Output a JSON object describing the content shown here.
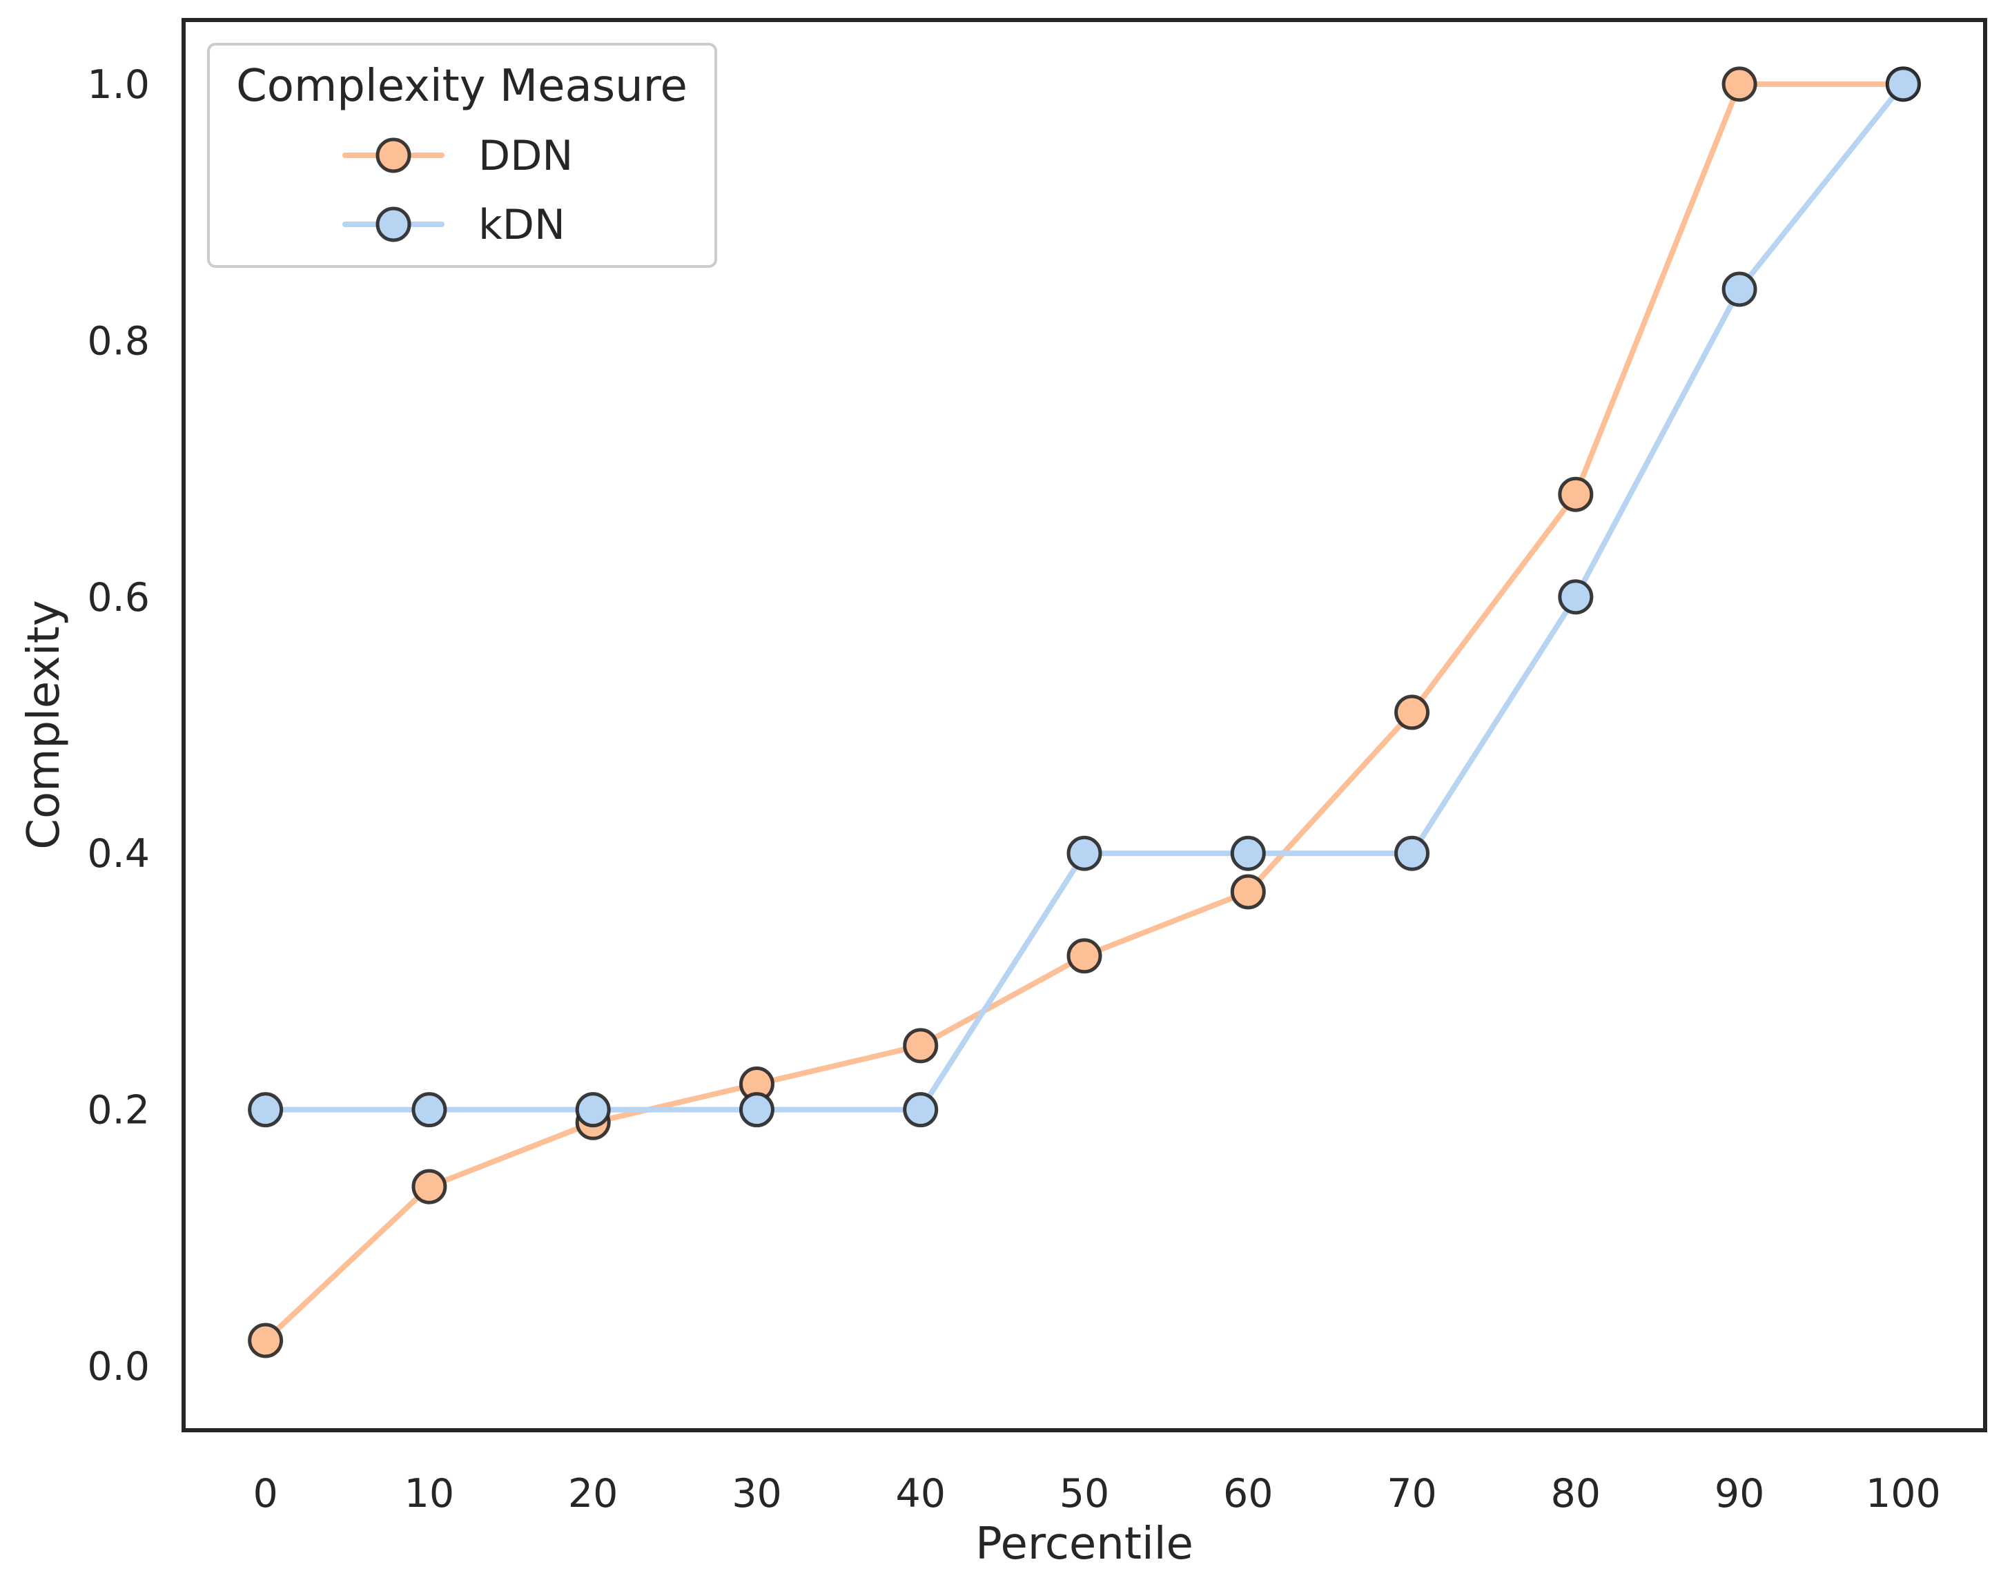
{
  "chart_data": {
    "type": "line",
    "xlabel": "Percentile",
    "ylabel": "Complexity",
    "x": [
      0,
      10,
      20,
      30,
      40,
      50,
      60,
      70,
      80,
      90,
      100
    ],
    "xticks": [
      "0",
      "10",
      "20",
      "30",
      "40",
      "50",
      "60",
      "70",
      "80",
      "90",
      "100"
    ],
    "yticks": [
      "0.0",
      "0.2",
      "0.4",
      "0.6",
      "0.8",
      "1.0"
    ],
    "xlim": [
      -5,
      105
    ],
    "ylim": [
      -0.05,
      1.05
    ],
    "grid": false,
    "legend": {
      "title": "Complexity Measure",
      "placement": "top-left"
    },
    "series": [
      {
        "name": "DDN",
        "color": "#fdbf96",
        "values": [
          0.02,
          0.14,
          0.19,
          0.22,
          0.25,
          0.32,
          0.37,
          0.51,
          0.68,
          1.0,
          1.0
        ]
      },
      {
        "name": "kDN",
        "color": "#b7d4f2",
        "values": [
          0.2,
          0.2,
          0.2,
          0.2,
          0.2,
          0.4,
          0.4,
          0.4,
          0.6,
          0.84,
          1.0
        ]
      }
    ],
    "marker_edge_color": "#262626",
    "axes_color": "#262626"
  }
}
